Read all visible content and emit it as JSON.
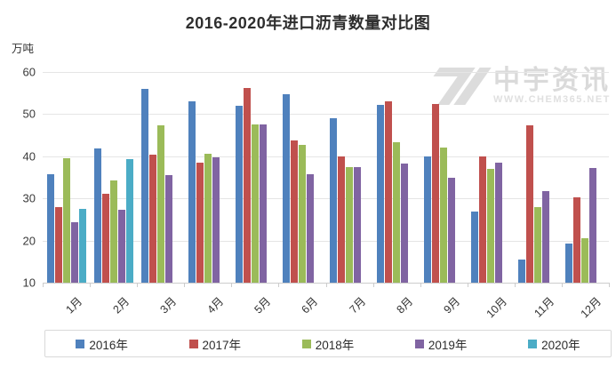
{
  "header": {
    "title": "2016-2020年进口沥青数量对比图"
  },
  "axis": {
    "unit_label": "万吨"
  },
  "watermark": {
    "brand": "中宇资讯",
    "site": "WWW.CHEM365.NET"
  },
  "chart_data": {
    "type": "bar",
    "title": "2016-2020年进口沥青数量对比图",
    "xlabel": "",
    "ylabel": "万吨",
    "ylim": [
      10,
      60
    ],
    "yticks": [
      10,
      20,
      30,
      40,
      50,
      60
    ],
    "grid": true,
    "legend_position": "bottom",
    "categories": [
      "1月",
      "2月",
      "3月",
      "4月",
      "5月",
      "6月",
      "7月",
      "8月",
      "9月",
      "10月",
      "11月",
      "12月"
    ],
    "series": [
      {
        "name": "2016年",
        "color": "#4F81BD",
        "values": [
          35.7,
          41.8,
          56.0,
          53.0,
          52.0,
          54.8,
          49.0,
          52.3,
          40.0,
          26.8,
          15.5,
          19.3
        ]
      },
      {
        "name": "2017年",
        "color": "#C0504D",
        "values": [
          28.0,
          31.2,
          40.3,
          38.5,
          56.2,
          43.8,
          40.0,
          53.0,
          52.5,
          40.0,
          47.3,
          30.2
        ]
      },
      {
        "name": "2018年",
        "color": "#9BBB59",
        "values": [
          39.5,
          34.2,
          47.3,
          40.5,
          47.6,
          42.8,
          37.5,
          43.3,
          42.0,
          37.1,
          28.0,
          20.5
        ]
      },
      {
        "name": "2019年",
        "color": "#8064A2",
        "values": [
          24.4,
          27.4,
          35.5,
          39.8,
          47.5,
          35.7,
          37.5,
          38.2,
          35.0,
          38.4,
          31.8,
          37.3
        ]
      },
      {
        "name": "2020年",
        "color": "#4BACC6",
        "values": [
          27.6,
          39.3,
          null,
          null,
          null,
          null,
          null,
          null,
          null,
          null,
          null,
          null
        ]
      }
    ]
  }
}
